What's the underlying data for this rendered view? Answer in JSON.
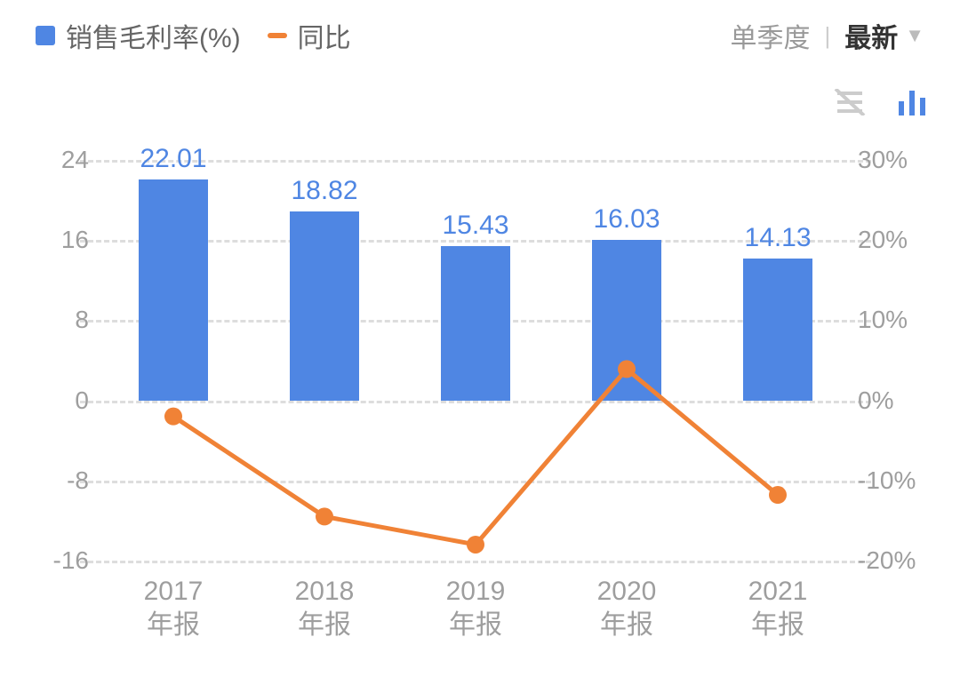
{
  "header": {
    "legend_bar": {
      "label": "销售毛利率(%)",
      "swatch_color": "#4f86e3"
    },
    "legend_line": {
      "label": "同比",
      "swatch_color": "#f08236"
    },
    "legend_text_color": "#666666",
    "control_period": "单季度",
    "control_separator": "|",
    "control_active": "最新",
    "control_text_color": "#999999",
    "control_active_color": "#333333",
    "chevron_color": "#bbbbbb"
  },
  "view_toggles": {
    "inactive_color": "#cccccc",
    "active_color": "#4f86e3"
  },
  "chart": {
    "type": "bar+line",
    "background_color": "#ffffff",
    "grid_color": "#dddddd",
    "grid_dash": "dashed",
    "axis_left": {
      "min": -16,
      "max": 24,
      "ticks": [
        -16,
        -8,
        0,
        8,
        16,
        24
      ],
      "tick_color": "#9e9e9e",
      "tick_fontsize": 28
    },
    "axis_right": {
      "min": -20,
      "max": 30,
      "ticks_pct": [
        -20,
        -10,
        0,
        10,
        20,
        30
      ],
      "tick_color": "#9e9e9e",
      "tick_fontsize": 28,
      "suffix": "%"
    },
    "categories": [
      {
        "year": "2017",
        "sub": "年报"
      },
      {
        "year": "2018",
        "sub": "年报"
      },
      {
        "year": "2019",
        "sub": "年报"
      },
      {
        "year": "2020",
        "sub": "年报"
      },
      {
        "year": "2021",
        "sub": "年报"
      }
    ],
    "xlabel_color": "#9e9e9e",
    "xlabel_fontsize": 30,
    "bars": {
      "color": "#4f86e3",
      "label_color": "#4f86e3",
      "label_fontsize": 30,
      "width_frac": 0.46,
      "values": [
        22.01,
        18.82,
        15.43,
        16.03,
        14.13
      ]
    },
    "line": {
      "color": "#f08236",
      "stroke_width": 5,
      "marker_radius": 10,
      "marker_fill": "#f08236",
      "values_pct": [
        -2,
        -14.5,
        -18,
        3.9,
        -11.8
      ]
    }
  }
}
